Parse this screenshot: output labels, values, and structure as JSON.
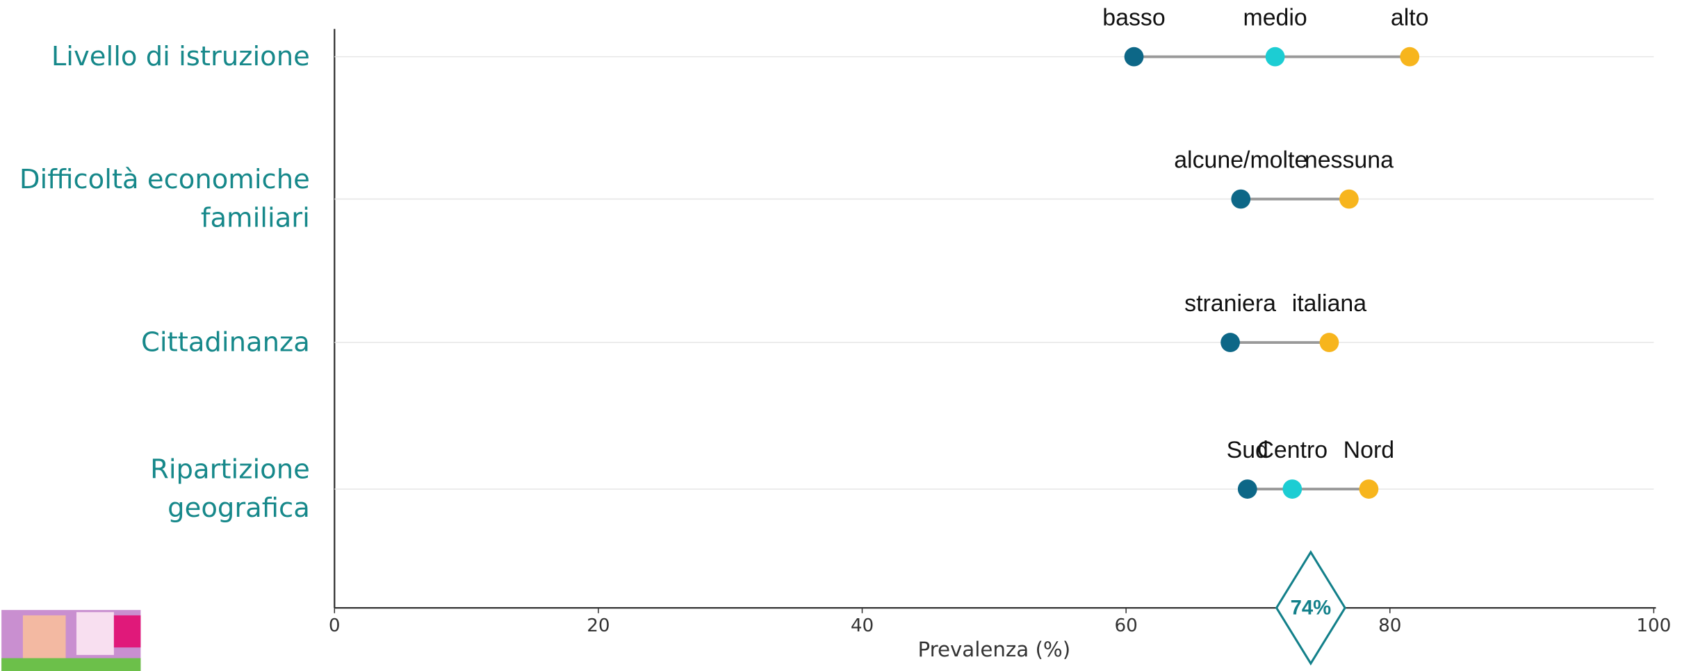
{
  "chart_data": {
    "type": "dumbbell",
    "xlabel": "Prevalenza (%)",
    "xlim": [
      0,
      100
    ],
    "xticks": [
      0,
      20,
      40,
      60,
      80,
      100
    ],
    "grid": true,
    "reference": {
      "value": 74,
      "label": "74%"
    },
    "rows": [
      {
        "category": "Livello di istruzione",
        "points": [
          {
            "name": "basso",
            "value": 60.6,
            "color": "#0d6787"
          },
          {
            "name": "medio",
            "value": 71.3,
            "color": "#1ccdd3"
          },
          {
            "name": "alto",
            "value": 81.5,
            "color": "#f7b51d"
          }
        ]
      },
      {
        "category": "Difficoltà economiche familiari",
        "points": [
          {
            "name": "alcune/molte",
            "value": 68.7,
            "color": "#0d6787"
          },
          {
            "name": "nessuna",
            "value": 76.9,
            "color": "#f7b51d"
          }
        ]
      },
      {
        "category": "Cittadinanza",
        "points": [
          {
            "name": "straniera",
            "value": 67.9,
            "color": "#0d6787"
          },
          {
            "name": "italiana",
            "value": 75.4,
            "color": "#f7b51d"
          }
        ]
      },
      {
        "category": "Ripartizione geografica",
        "points": [
          {
            "name": "Sud",
            "value": 69.2,
            "color": "#0d6787"
          },
          {
            "name": "Centro",
            "value": 72.6,
            "color": "#1ccdd3"
          },
          {
            "name": "Nord",
            "value": 78.4,
            "color": "#f7b51d"
          }
        ]
      }
    ]
  }
}
